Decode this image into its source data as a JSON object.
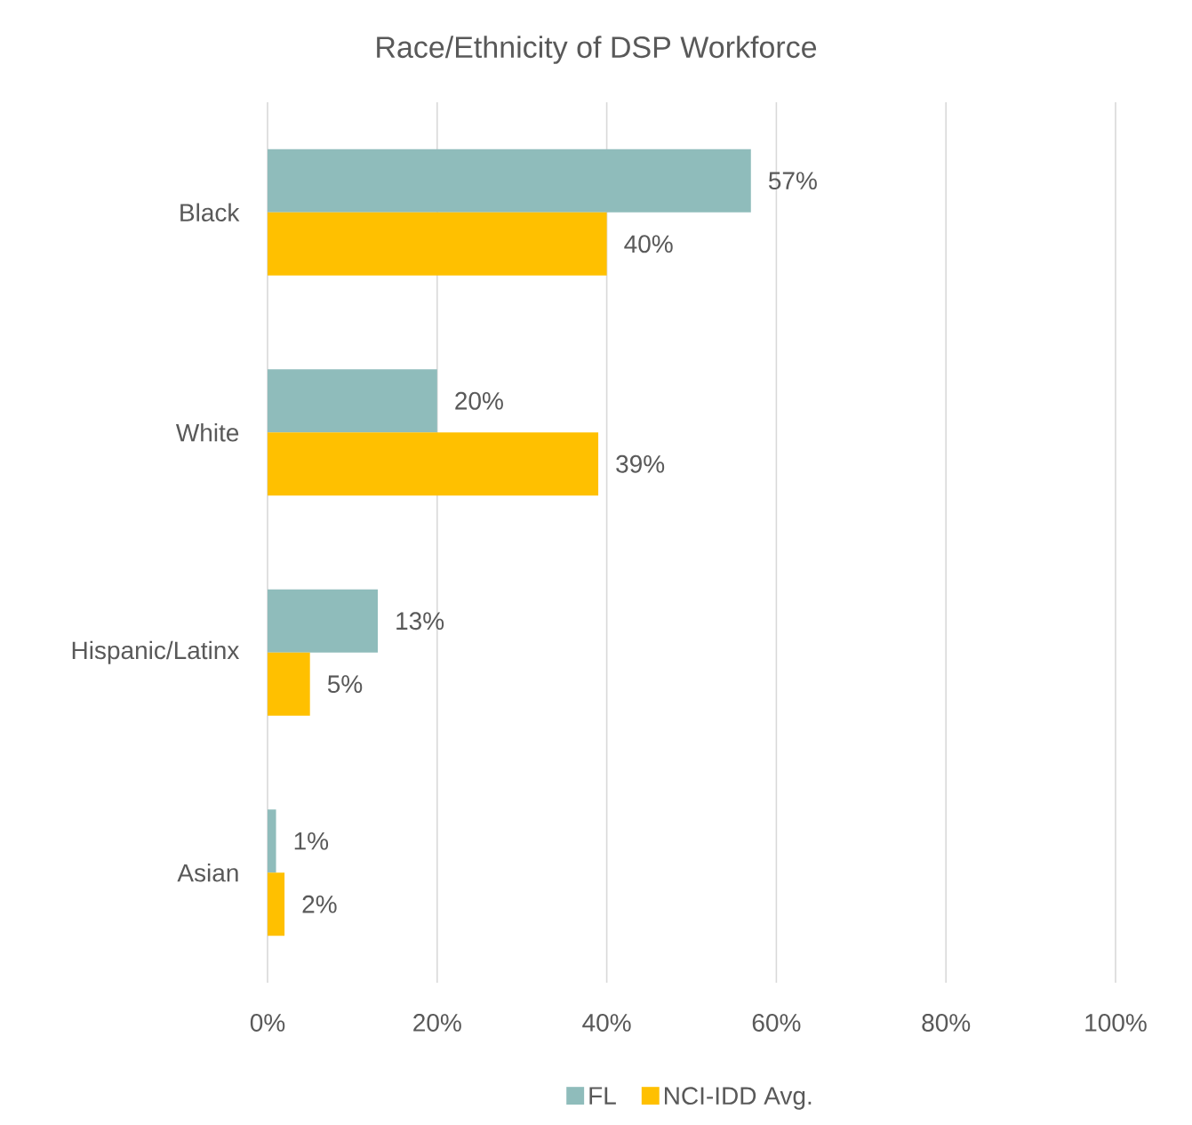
{
  "chart_data": {
    "type": "bar",
    "orientation": "horizontal",
    "title": "Race/Ethnicity of DSP Workforce",
    "categories": [
      "Black",
      "White",
      "Hispanic/Latinx",
      "Asian"
    ],
    "series": [
      {
        "name": "FL",
        "color": "#8fbcbb",
        "values": [
          57,
          20,
          13,
          1
        ],
        "value_labels": [
          "57%",
          "20%",
          "13%",
          "1%"
        ]
      },
      {
        "name": "NCI-IDD Avg.",
        "color": "#ffc000",
        "values": [
          40,
          39,
          5,
          2
        ],
        "value_labels": [
          "40%",
          "39%",
          "5%",
          "2%"
        ]
      }
    ],
    "xlim": [
      0,
      100
    ],
    "xticks": [
      {
        "value": 0,
        "label": "0%"
      },
      {
        "value": 20,
        "label": "20%"
      },
      {
        "value": 40,
        "label": "40%"
      },
      {
        "value": 60,
        "label": "60%"
      },
      {
        "value": 80,
        "label": "80%"
      },
      {
        "value": 100,
        "label": "100%"
      }
    ],
    "grid": "x",
    "legend": "bottom"
  }
}
